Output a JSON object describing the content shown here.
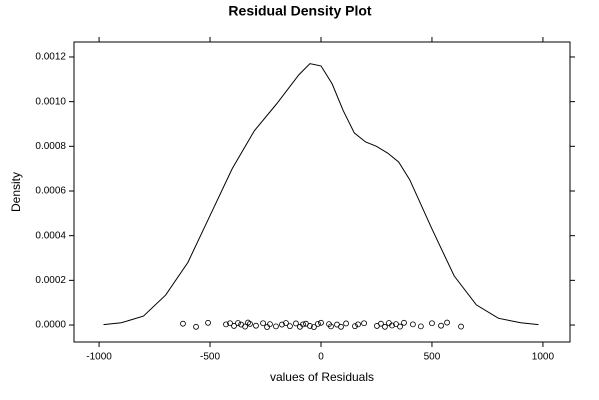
{
  "chart_data": {
    "type": "line",
    "title": "Residual Density Plot",
    "xlabel": "values of Residuals",
    "ylabel": "Density",
    "x": [
      -980,
      -900,
      -800,
      -700,
      -600,
      -500,
      -400,
      -300,
      -200,
      -100,
      -50,
      0,
      50,
      100,
      150,
      200,
      250,
      300,
      350,
      400,
      500,
      600,
      700,
      800,
      900,
      980
    ],
    "values": [
      2e-06,
      1e-05,
      4e-05,
      0.000134,
      0.00028,
      0.00049,
      0.0007,
      0.00087,
      0.00099,
      0.00112,
      0.00117,
      0.00116,
      0.00108,
      0.00096,
      0.00086,
      0.00082,
      0.0008,
      0.00077,
      0.00073,
      0.00065,
      0.00043,
      0.00022,
      9e-05,
      3e-05,
      1e-05,
      2e-06
    ],
    "color": "#000000",
    "points": {
      "x": [
        -622,
        -563,
        -509,
        -428,
        -410,
        -392,
        -374,
        -360,
        -342,
        -329,
        -320,
        -293,
        -261,
        -243,
        -230,
        -203,
        -176,
        -158,
        -140,
        -113,
        -95,
        -81,
        -68,
        -50,
        -32,
        -14,
        0,
        36,
        45,
        72,
        90,
        113,
        153,
        167,
        194,
        252,
        270,
        288,
        306,
        320,
        338,
        356,
        374,
        414,
        450,
        500,
        541,
        568,
        631
      ],
      "y": [
        6e-06,
        -8e-06,
        1e-05,
        3e-06,
        8e-06,
        -4e-06,
        9e-06,
        2e-06,
        -7e-06,
        1.1e-05,
        5e-06,
        -3e-06,
        8e-06,
        -9e-06,
        4e-06,
        -6e-06,
        2e-06,
        9e-06,
        -5e-06,
        7e-06,
        -8e-06,
        3e-06,
        6e-06,
        -4e-06,
        -9e-06,
        5e-06,
        1e-05,
        4e-06,
        -6e-06,
        2e-06,
        -8e-06,
        7e-06,
        -5e-06,
        3e-06,
        8e-06,
        -4e-06,
        6e-06,
        -8e-06,
        9e-06,
        -2e-06,
        4e-06,
        -7e-06,
        1e-05,
        3e-06,
        -6e-06,
        8e-06,
        -3e-06,
        1.1e-05,
        -7e-06
      ],
      "color": "#000000"
    },
    "xlim": [
      -1113,
      1122
    ],
    "ylim": [
      -7.6e-05,
      0.001267
    ],
    "xticks": [
      -1000,
      -500,
      0,
      500,
      1000
    ],
    "yticks": [
      {
        "value": 0,
        "label": "0.0000"
      },
      {
        "value": 0.0002,
        "label": "0.0002"
      },
      {
        "value": 0.0004,
        "label": "0.0004"
      },
      {
        "value": 0.0006,
        "label": "0.0006"
      },
      {
        "value": 0.0008,
        "label": "0.0008"
      },
      {
        "value": 0.001,
        "label": "0.0010"
      },
      {
        "value": 0.0012,
        "label": "0.0012"
      }
    ]
  }
}
